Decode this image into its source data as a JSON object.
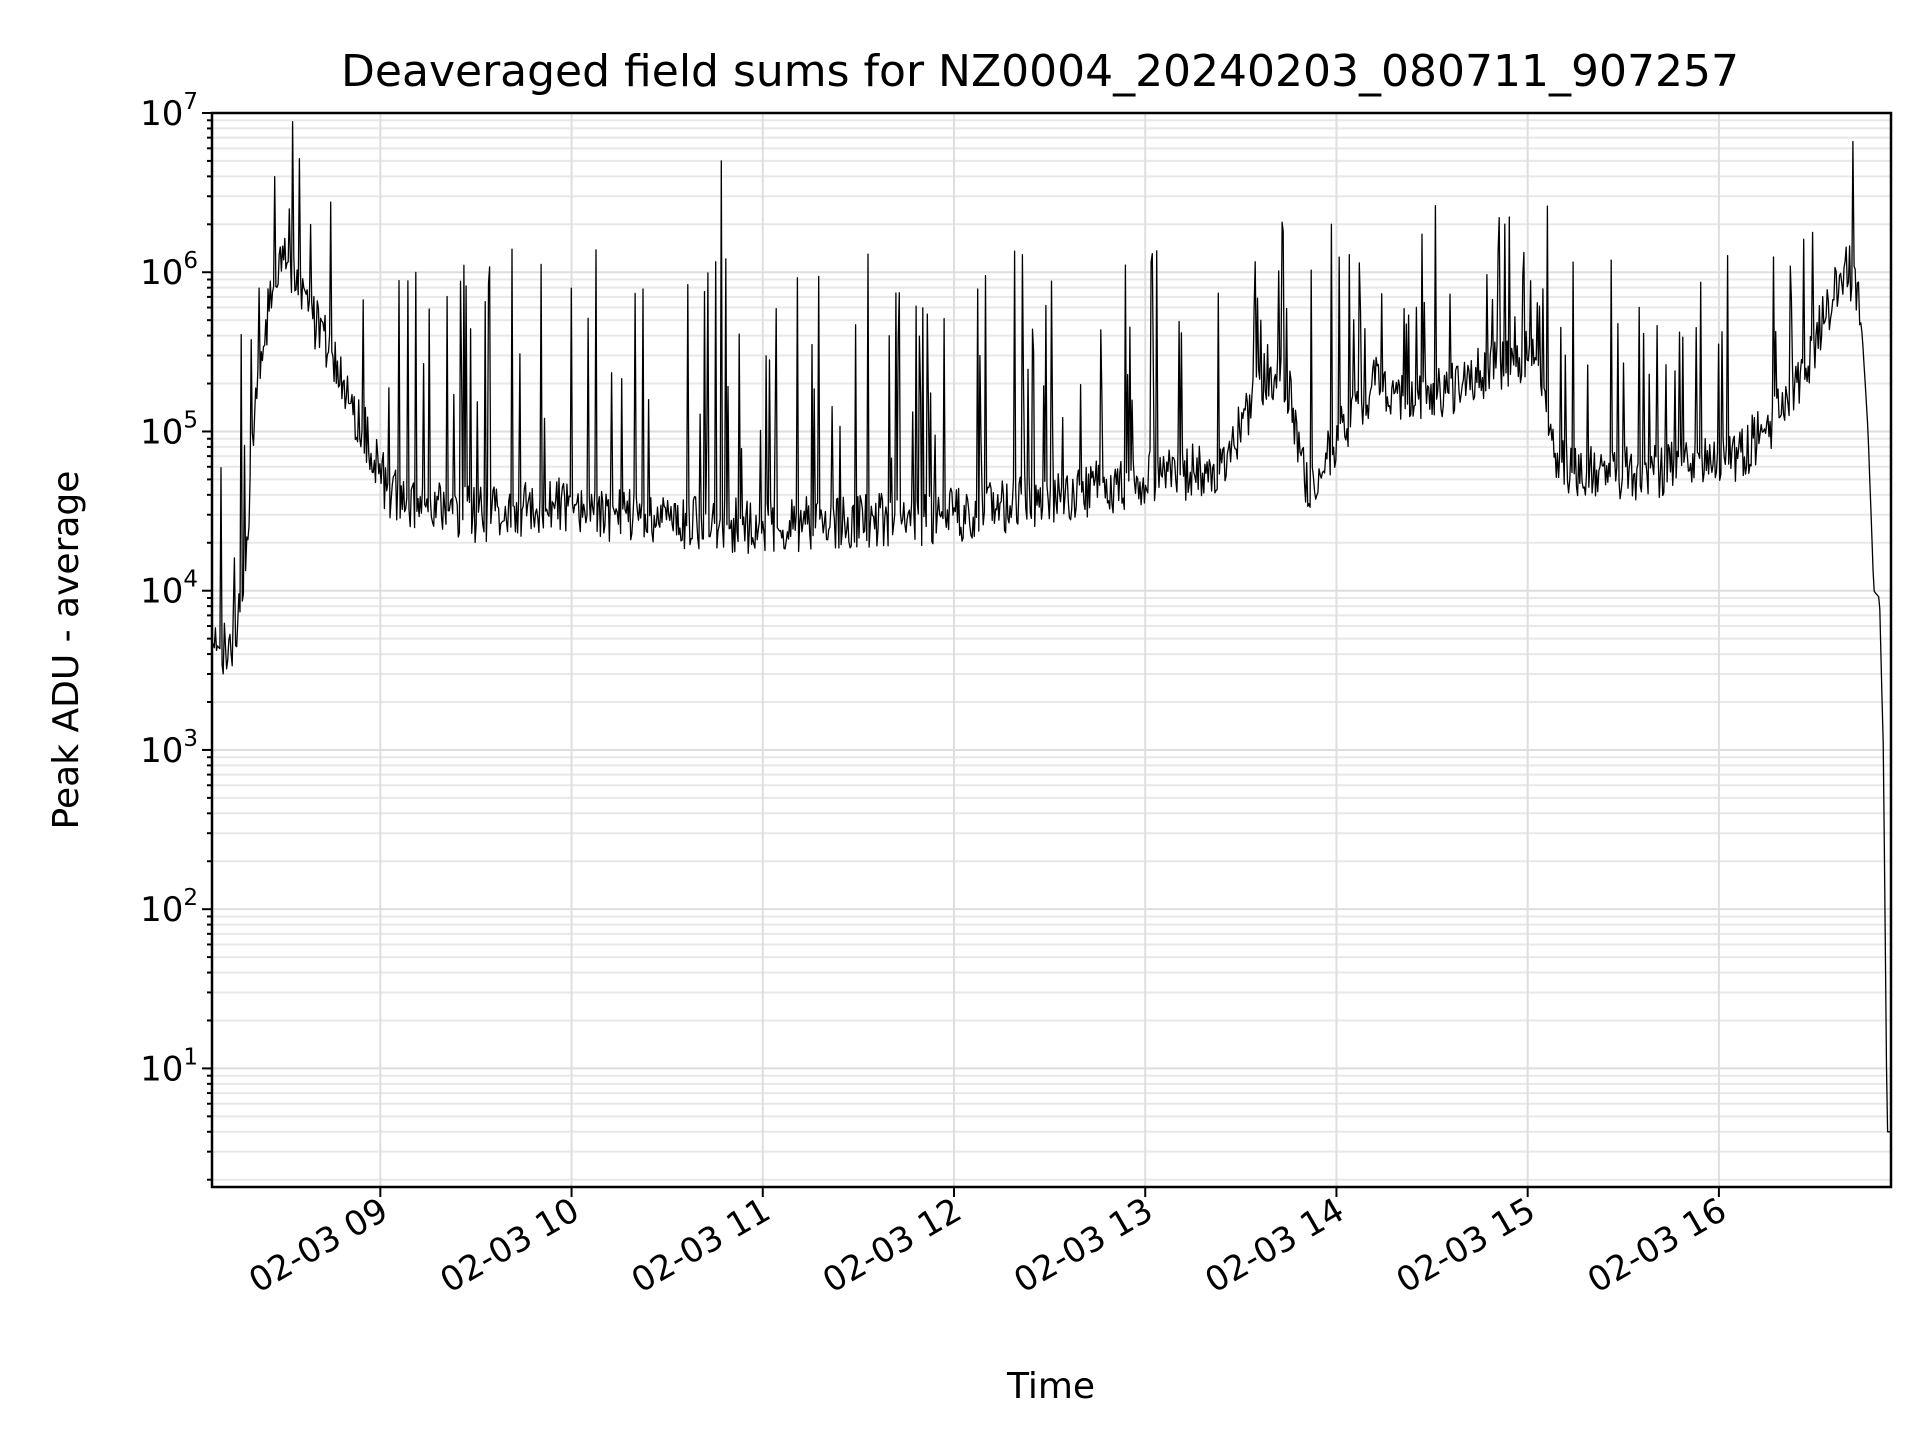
{
  "chart_data": {
    "type": "line",
    "title": "Deaveraged field sums for NZ0004_20240203_080711_907257",
    "xlabel": "Time",
    "ylabel": "Peak ADU - average",
    "yscale": "log",
    "ylim": [
      1.8,
      10000000
    ],
    "xlim": [
      "2024-02-03 08:07:11",
      "2024-02-03 16:54:00"
    ],
    "x_tick_labels": [
      "02-03 09",
      "02-03 10",
      "02-03 11",
      "02-03 12",
      "02-03 13",
      "02-03 14",
      "02-03 15",
      "02-03 16"
    ],
    "x_tick_hours": [
      9,
      10,
      11,
      12,
      13,
      14,
      15,
      16
    ],
    "y_ticks": [
      10,
      100,
      1000,
      10000,
      100000,
      1000000,
      10000000
    ],
    "y_tick_base": "10",
    "y_tick_exponents": [
      "1",
      "2",
      "3",
      "4",
      "5",
      "6",
      "7"
    ],
    "grid": true,
    "grid_minor_y": true,
    "line_color": "#000000",
    "series": [
      {
        "x_hours": [
          8.12,
          8.2,
          8.28,
          8.35,
          8.43,
          8.5,
          8.58,
          8.65,
          8.75,
          8.85,
          8.95,
          9.05,
          9.2,
          9.35,
          9.5,
          9.65,
          9.8,
          10.0,
          10.2,
          10.4,
          10.6,
          10.8,
          11.0,
          11.2,
          11.4,
          11.6,
          11.8,
          12.0,
          12.2,
          12.4,
          12.6,
          12.8,
          13.0,
          13.2,
          13.4,
          13.55,
          13.65,
          13.75,
          13.85,
          14.0,
          14.2,
          14.4,
          14.6,
          14.8,
          14.95,
          15.05,
          15.15,
          15.3,
          15.5,
          15.7,
          15.9,
          16.1,
          16.3,
          16.45,
          16.55,
          16.62,
          16.68,
          16.72,
          16.75,
          16.78,
          16.81,
          16.84,
          16.86,
          16.88,
          16.9
        ],
        "y": [
          5000,
          4000,
          8000,
          200000,
          700000,
          1200000,
          800000,
          500000,
          300000,
          150000,
          80000,
          40000,
          35000,
          32000,
          30000,
          31000,
          33000,
          35000,
          30000,
          28000,
          27000,
          26000,
          25000,
          26000,
          27000,
          28000,
          28000,
          30000,
          33000,
          37000,
          40000,
          45000,
          50000,
          55000,
          60000,
          150000,
          250000,
          180000,
          45000,
          90000,
          200000,
          150000,
          180000,
          250000,
          300000,
          250000,
          60000,
          55000,
          55000,
          57000,
          60000,
          70000,
          120000,
          250000,
          500000,
          900000,
          1000000,
          800000,
          400000,
          100000,
          10000,
          9000,
          1000,
          4,
          4
        ]
      }
    ],
    "spikes": [
      {
        "x_hour": 8.52,
        "y": 2500000
      },
      {
        "x_hour": 10.78,
        "y": 5000000
      },
      {
        "x_hour": 13.97,
        "y": 2000000
      },
      {
        "x_hour": 14.85,
        "y": 2200000
      },
      {
        "x_hour": 15.1,
        "y": 2600000
      }
    ]
  }
}
